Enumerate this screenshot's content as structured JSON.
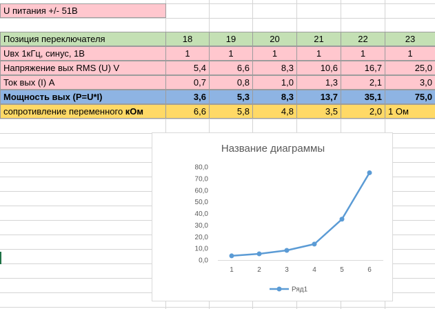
{
  "sheet": {
    "title_cell": "U питания +/- 51В",
    "header_row": {
      "label": "Позиция переключателя",
      "values": [
        "18",
        "19",
        "20",
        "21",
        "22",
        "23"
      ]
    },
    "rows": [
      {
        "label": "Uвх 1кГц, синус, 1В",
        "values": [
          "1",
          "1",
          "1",
          "1",
          "1",
          "1"
        ],
        "align": "center",
        "bold": false,
        "color": "#ffc7ce"
      },
      {
        "label": "Напряжение вых RMS (U) V",
        "values": [
          "5,4",
          "6,6",
          "8,3",
          "10,6",
          "16,7",
          "25,0"
        ],
        "align": "right",
        "bold": false,
        "color": "#ffc7ce"
      },
      {
        "label": "Ток вых (I) A",
        "values": [
          "0,7",
          "0,8",
          "1,0",
          "1,3",
          "2,1",
          "3,0"
        ],
        "align": "right",
        "bold": false,
        "color": "#ffc7ce"
      },
      {
        "label": "Мощность вых (P=U*I)",
        "values": [
          "3,6",
          "5,3",
          "8,3",
          "13,7",
          "35,1",
          "75,0"
        ],
        "align": "right",
        "bold": true,
        "color": "#8eb4e3"
      }
    ],
    "resistance_row": {
      "label_prefix": "сопротивление переменного ",
      "label_bold": "кОм",
      "values": [
        "6,6",
        "5,8",
        "4,8",
        "3,5",
        "2,0"
      ],
      "last_value": "1 Ом",
      "color": "#ffd966"
    },
    "colors": {
      "title": "#ffc7ce",
      "header": "#c4e0b4",
      "gridline": "#d4d4d4",
      "cell_border": "#9c9c9c"
    }
  },
  "chart_data": {
    "type": "line",
    "title": "Название диаграммы",
    "categories": [
      "1",
      "2",
      "3",
      "4",
      "5",
      "6"
    ],
    "series": [
      {
        "name": "Ряд1",
        "values": [
          3.6,
          5.3,
          8.3,
          13.7,
          35.1,
          75.0
        ],
        "color": "#5b9bd5"
      }
    ],
    "yticks": [
      "0,0",
      "10,0",
      "20,0",
      "30,0",
      "40,0",
      "50,0",
      "60,0",
      "70,0",
      "80,0"
    ],
    "ylim": [
      0,
      80
    ],
    "grid": false,
    "legend": "bottom"
  }
}
